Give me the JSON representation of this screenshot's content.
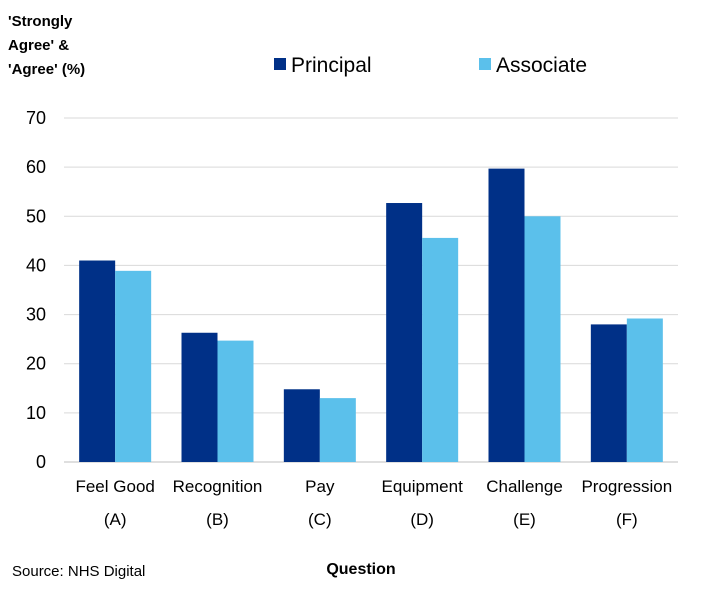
{
  "chart_data": {
    "type": "bar",
    "title": "",
    "ylabel_lines": [
      "'Strongly",
      "Agree' &",
      "'Agree' (%)"
    ],
    "xlabel": "Question",
    "source": "Source: NHS Digital",
    "ylim": [
      0,
      70
    ],
    "yticks": [
      0,
      10,
      20,
      30,
      40,
      50,
      60,
      70
    ],
    "grid": true,
    "legend_position": "top",
    "categories": [
      "Feel Good",
      "Recognition",
      "Pay",
      "Equipment",
      "Challenge",
      "Progression"
    ],
    "category_codes": [
      "(A)",
      "(B)",
      "(C)",
      "(D)",
      "(E)",
      "(F)"
    ],
    "series": [
      {
        "name": "Principal",
        "color": "#003087",
        "values": [
          41,
          26.3,
          14.8,
          52.7,
          59.7,
          28
        ]
      },
      {
        "name": "Associate",
        "color": "#5BC0EB",
        "values": [
          38.9,
          24.7,
          13,
          45.6,
          50,
          29.2
        ]
      }
    ]
  }
}
